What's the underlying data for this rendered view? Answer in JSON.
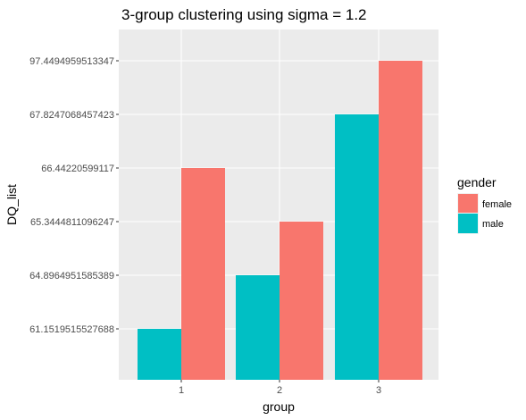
{
  "chart_data": {
    "type": "bar",
    "title": "3-group clustering using sigma = 1.2",
    "xlabel": "group",
    "ylabel": "DQ_list",
    "categories": [
      "1",
      "2",
      "3"
    ],
    "y_axis_scale": "categorical (discrete levels, bars reach their level)",
    "y_levels": [
      "61.1519515527688",
      "64.8964951585389",
      "65.3444811096247",
      "66.44220599117",
      "67.8247068457423",
      "97.4494959513347"
    ],
    "series": [
      {
        "name": "female",
        "color": "#f8766d",
        "values": [
          "66.44220599117",
          "65.3444811096247",
          "97.4494959513347"
        ]
      },
      {
        "name": "male",
        "color": "#00bfc4",
        "values": [
          "61.1519515527688",
          "64.8964951585389",
          "67.8247068457423"
        ]
      }
    ],
    "legend": {
      "title": "gender",
      "position": "right"
    },
    "grid": true,
    "colors": {
      "panel": "#ebebeb",
      "gridline": "#ffffff",
      "female": "#f8766d",
      "male": "#00bfc4"
    }
  }
}
